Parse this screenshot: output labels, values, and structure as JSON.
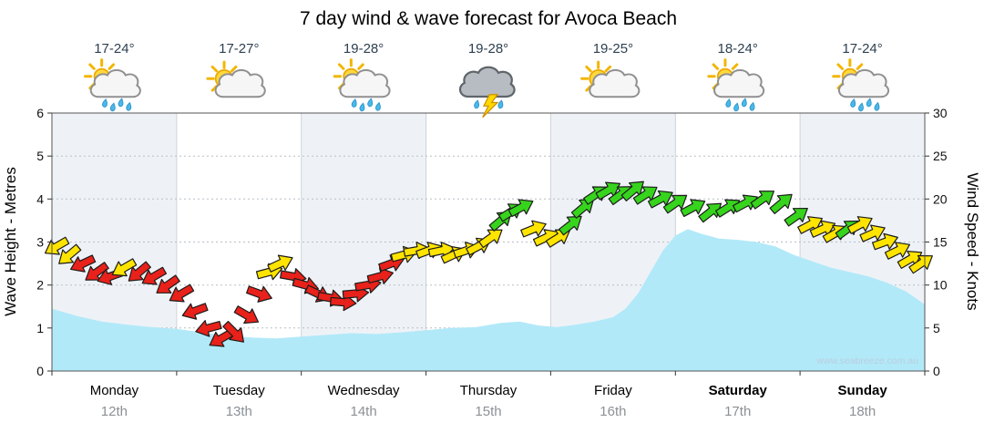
{
  "chart_data": {
    "type": "area+wind-arrows",
    "title": "7 day wind & wave forecast for Avoca Beach",
    "watermark": "www.seabreeze.com.au",
    "left_axis": {
      "title": "Wave Height - Metres",
      "min": 0,
      "max": 6,
      "ticks": [
        0,
        1,
        2,
        3,
        4,
        5,
        6
      ]
    },
    "right_axis": {
      "title": "Wind Speed - Knots",
      "min": 0,
      "max": 30,
      "ticks": [
        0,
        5,
        10,
        15,
        20,
        25,
        30
      ]
    },
    "grid": "dotted-horizontal",
    "legend": "none",
    "days": [
      {
        "name": "Monday",
        "date": "12th",
        "temp": "17-24°",
        "icon": "sun-cloud-rain",
        "bold": false
      },
      {
        "name": "Tuesday",
        "date": "13th",
        "temp": "17-27°",
        "icon": "sun-cloud",
        "bold": false
      },
      {
        "name": "Wednesday",
        "date": "14th",
        "temp": "19-28°",
        "icon": "sun-cloud-rain",
        "bold": false
      },
      {
        "name": "Thursday",
        "date": "15th",
        "temp": "19-28°",
        "icon": "storm",
        "bold": false
      },
      {
        "name": "Friday",
        "date": "16th",
        "temp": "19-25°",
        "icon": "sun-cloud",
        "bold": false
      },
      {
        "name": "Saturday",
        "date": "17th",
        "temp": "18-24°",
        "icon": "sun-cloud-rain",
        "bold": true
      },
      {
        "name": "Sunday",
        "date": "18th",
        "temp": "17-24°",
        "icon": "sun-cloud-rain",
        "bold": true
      }
    ],
    "wave_height_m": {
      "x_days": [
        0,
        0.2,
        0.4,
        0.6,
        0.8,
        1.0,
        1.2,
        1.4,
        1.6,
        1.8,
        2.0,
        2.2,
        2.4,
        2.6,
        2.8,
        3.0,
        3.2,
        3.4,
        3.6,
        3.75,
        3.9,
        4.05,
        4.2,
        4.35,
        4.5,
        4.6,
        4.7,
        4.8,
        4.9,
        5.0,
        5.1,
        5.2,
        5.35,
        5.5,
        5.65,
        5.8,
        5.95,
        6.1,
        6.25,
        6.4,
        6.55,
        6.7,
        6.85,
        7.0
      ],
      "values": [
        1.45,
        1.28,
        1.15,
        1.08,
        1.02,
        0.98,
        0.9,
        0.82,
        0.78,
        0.76,
        0.8,
        0.84,
        0.88,
        0.86,
        0.9,
        0.95,
        1.0,
        1.02,
        1.12,
        1.15,
        1.06,
        1.02,
        1.08,
        1.15,
        1.25,
        1.45,
        1.8,
        2.3,
        2.8,
        3.15,
        3.3,
        3.2,
        3.08,
        3.05,
        3.0,
        2.9,
        2.7,
        2.55,
        2.4,
        2.3,
        2.2,
        2.05,
        1.85,
        1.55
      ]
    },
    "wind": {
      "point_format": [
        "day_fraction",
        "knots",
        "color",
        "direction_deg"
      ],
      "points": [
        [
          0.04,
          14.5,
          "yellow",
          150
        ],
        [
          0.14,
          13.5,
          "yellow",
          140
        ],
        [
          0.25,
          12.5,
          "red",
          155
        ],
        [
          0.36,
          11.5,
          "red",
          145
        ],
        [
          0.47,
          11,
          "red",
          160
        ],
        [
          0.58,
          12,
          "yellow",
          150
        ],
        [
          0.7,
          11.5,
          "red",
          140
        ],
        [
          0.82,
          11,
          "red",
          150
        ],
        [
          0.93,
          10,
          "red",
          145
        ],
        [
          1.04,
          9,
          "red",
          150
        ],
        [
          1.15,
          7,
          "red",
          160
        ],
        [
          1.26,
          5,
          "red",
          165
        ],
        [
          1.36,
          3.8,
          "red",
          150
        ],
        [
          1.46,
          4.5,
          "red",
          45
        ],
        [
          1.56,
          6.5,
          "red",
          30
        ],
        [
          1.66,
          9,
          "red",
          20
        ],
        [
          1.74,
          11.5,
          "yellow",
          -15
        ],
        [
          1.83,
          12.5,
          "yellow",
          -25
        ],
        [
          1.93,
          11,
          "red",
          10
        ],
        [
          2.03,
          10,
          "red",
          15
        ],
        [
          2.13,
          9,
          "red",
          25
        ],
        [
          2.23,
          8.5,
          "red",
          10
        ],
        [
          2.33,
          8,
          "red",
          5
        ],
        [
          2.43,
          9,
          "red",
          -5
        ],
        [
          2.53,
          10,
          "red",
          -10
        ],
        [
          2.63,
          11,
          "red",
          -15
        ],
        [
          2.72,
          12.5,
          "red",
          -20
        ],
        [
          2.82,
          13.5,
          "yellow",
          -15
        ],
        [
          2.92,
          14,
          "yellow",
          -10
        ],
        [
          3.02,
          14,
          "yellow",
          -20
        ],
        [
          3.12,
          14,
          "yellow",
          -12
        ],
        [
          3.22,
          13.5,
          "yellow",
          -25
        ],
        [
          3.32,
          14,
          "yellow",
          -18
        ],
        [
          3.42,
          14.5,
          "yellow",
          -28
        ],
        [
          3.52,
          15.5,
          "yellow",
          -35
        ],
        [
          3.6,
          17.5,
          "green",
          -40
        ],
        [
          3.68,
          18.5,
          "green",
          -32
        ],
        [
          3.76,
          19,
          "green",
          -28
        ],
        [
          3.86,
          16.5,
          "yellow",
          -22
        ],
        [
          3.96,
          15.5,
          "yellow",
          -25
        ],
        [
          4.06,
          15.5,
          "yellow",
          -32
        ],
        [
          4.16,
          17,
          "green",
          -38
        ],
        [
          4.26,
          19,
          "green",
          -40
        ],
        [
          4.36,
          20.5,
          "green",
          -34
        ],
        [
          4.46,
          21,
          "green",
          -30
        ],
        [
          4.56,
          20.5,
          "green",
          -36
        ],
        [
          4.66,
          21,
          "green",
          -40
        ],
        [
          4.76,
          20.5,
          "green",
          -33
        ],
        [
          4.88,
          20,
          "green",
          -28
        ],
        [
          5.0,
          19.5,
          "green",
          -35
        ],
        [
          5.14,
          19,
          "green",
          -28
        ],
        [
          5.28,
          18.5,
          "green",
          -38
        ],
        [
          5.42,
          19,
          "green",
          -32
        ],
        [
          5.56,
          19.5,
          "green",
          -28
        ],
        [
          5.7,
          20,
          "green",
          -35
        ],
        [
          5.85,
          19.5,
          "green",
          -40
        ],
        [
          5.97,
          18,
          "green",
          -35
        ],
        [
          6.08,
          17,
          "yellow",
          -28
        ],
        [
          6.18,
          16.5,
          "yellow",
          -24
        ],
        [
          6.28,
          16,
          "yellow",
          -30
        ],
        [
          6.38,
          16.5,
          "green",
          -36
        ],
        [
          6.48,
          17,
          "yellow",
          -28
        ],
        [
          6.58,
          16,
          "yellow",
          -24
        ],
        [
          6.68,
          15,
          "yellow",
          -20
        ],
        [
          6.78,
          14,
          "yellow",
          -26
        ],
        [
          6.88,
          13,
          "yellow",
          -30
        ],
        [
          6.97,
          12.5,
          "yellow",
          -34
        ]
      ]
    },
    "colors": {
      "wave_fill": "#b2e9f9",
      "band_shade": "#eef2f6",
      "band_white": "#ffffff",
      "grid": "#b8bfc6",
      "day_line": "#cdd3d9",
      "border": "#555555",
      "arrow_red": "#e8211a",
      "arrow_yellow": "#ffe400",
      "arrow_green": "#36d41c",
      "arrow_outline": "#1c1c1c",
      "temp_text": "#2e4050",
      "date_text": "#8c9196",
      "watermark_text": "#b9cedd"
    }
  }
}
